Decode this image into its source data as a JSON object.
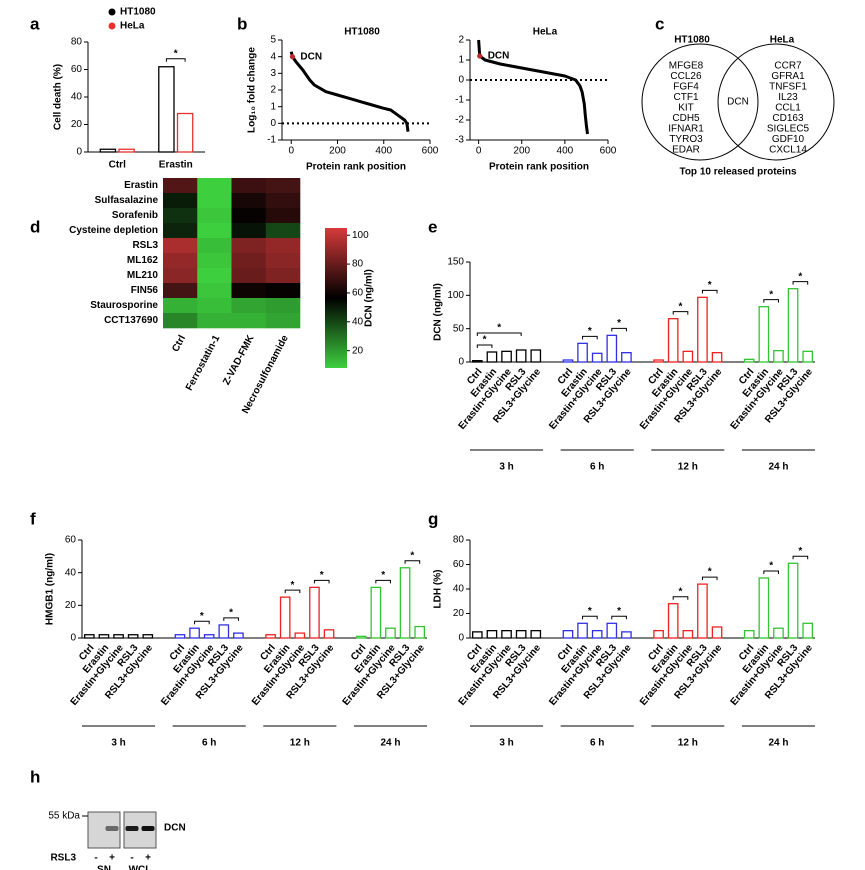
{
  "chart_data": [
    {
      "type": "bar",
      "panel": "a",
      "ylabel": "Cell death (%)",
      "categories": [
        "Ctrl",
        "Erastin"
      ],
      "series": [
        {
          "name": "HT1080",
          "color": "#000000",
          "values": [
            2,
            62
          ]
        },
        {
          "name": "HeLa",
          "color": "#e8312f",
          "values": [
            2,
            28
          ]
        }
      ],
      "ylim": [
        0,
        80
      ],
      "yticks": [
        0,
        20,
        40,
        60,
        80
      ],
      "significance": [
        {
          "category": 1,
          "between": [
            0,
            1
          ],
          "label": "*"
        }
      ]
    },
    {
      "type": "scatter",
      "panel": "b",
      "title": "HT1080",
      "ylabel": "Log₁₀ fold change",
      "xlabel": "Protein rank position",
      "x": [
        0,
        5,
        20,
        50,
        80,
        100,
        150,
        200,
        250,
        300,
        350,
        400,
        430,
        450,
        470,
        490,
        500,
        505
      ],
      "y": [
        4.3,
        4.0,
        3.7,
        3.2,
        2.6,
        2.3,
        1.9,
        1.7,
        1.5,
        1.3,
        1.1,
        0.9,
        0.8,
        0.6,
        0.4,
        0.2,
        0,
        -0.5
      ],
      "color": "#000000",
      "highlight_point": 1,
      "highlight_color": "#c0282d",
      "annotation": "DCN",
      "reference_line": 0,
      "xlim": [
        -40,
        600
      ],
      "xticks": [
        0,
        200,
        400,
        600
      ],
      "ylim": [
        -1,
        5
      ],
      "yticks": [
        -1,
        0,
        1,
        2,
        3,
        4,
        5
      ]
    },
    {
      "type": "scatter",
      "title": "HeLa",
      "xlabel": "Protein rank position",
      "x": [
        0,
        5,
        30,
        100,
        200,
        300,
        400,
        450,
        470,
        480,
        490,
        495,
        500,
        505
      ],
      "y": [
        2.0,
        1.2,
        1.0,
        0.8,
        0.6,
        0.4,
        0.2,
        0.0,
        -0.3,
        -0.6,
        -1.2,
        -1.8,
        -2.3,
        -2.7
      ],
      "color": "#000000",
      "highlight_point": 1,
      "highlight_color": "#c0282d",
      "annotation": "DCN",
      "reference_line": 0,
      "xlim": [
        -40,
        600
      ],
      "xticks": [
        0,
        200,
        400,
        600
      ],
      "ylim": [
        -3,
        2
      ],
      "yticks": [
        -3,
        -2,
        -1,
        0,
        1,
        2
      ]
    },
    {
      "type": "venn",
      "panel": "c",
      "sets": [
        "HT1080",
        "HeLa"
      ],
      "left_items": [
        "MFGE8",
        "CCL26",
        "FGF4",
        "CTF1",
        "KIT",
        "CDH5",
        "IFNAR1",
        "TYRO3",
        "EDAR"
      ],
      "right_items": [
        "CCR7",
        "GFRA1",
        "TNFSF1",
        "IL23",
        "CCL1",
        "CD163",
        "SIGLEC5",
        "GDF10",
        "CXCL14"
      ],
      "shared": "DCN",
      "shared_color": "#d42a2a",
      "caption": "Top 10 released proteins"
    },
    {
      "type": "heatmap",
      "panel": "d",
      "rows": [
        "Erastin",
        "Sulfasalazine",
        "Sorafenib",
        "Cysteine depletion",
        "RSL3",
        "ML162",
        "ML210",
        "FIN56",
        "Staurosporine",
        "CCT137690"
      ],
      "columns": [
        "Ctrl",
        "Ferrostatin-1",
        "Z-VAD-FMK",
        "Necrosulfonamide"
      ],
      "values": [
        [
          75,
          5,
          70,
          72
        ],
        [
          50,
          8,
          62,
          68
        ],
        [
          45,
          10,
          58,
          65
        ],
        [
          48,
          8,
          52,
          40
        ],
        [
          95,
          12,
          85,
          90
        ],
        [
          90,
          10,
          82,
          88
        ],
        [
          88,
          8,
          80,
          85
        ],
        [
          72,
          10,
          60,
          58
        ],
        [
          15,
          12,
          18,
          20
        ],
        [
          25,
          15,
          15,
          18
        ]
      ],
      "colormap": [
        "#3ecf3e",
        "#000000",
        "#d63a3a"
      ],
      "zlim": [
        8,
        105
      ],
      "zticks": [
        20,
        40,
        60,
        80,
        100
      ],
      "zlabel": "DCN (ng/ml)"
    },
    {
      "type": "groupedbar",
      "panel": "e",
      "ylabel": "DCN (ng/ml)",
      "categories": [
        "Ctrl",
        "Erastin",
        "Erastin+Glycine",
        "RSL3",
        "RSL3+Glycine"
      ],
      "groups": [
        {
          "name": "3 h",
          "color": "#000000",
          "values": [
            2,
            15,
            16,
            18,
            18
          ]
        },
        {
          "name": "6 h",
          "color": "#2f2fe6",
          "values": [
            3,
            28,
            13,
            40,
            14
          ]
        },
        {
          "name": "12 h",
          "color": "#ee2222",
          "values": [
            3,
            65,
            16,
            97,
            14
          ]
        },
        {
          "name": "24 h",
          "color": "#33c433",
          "values": [
            4,
            83,
            17,
            110,
            16
          ]
        }
      ],
      "ylim": [
        0,
        150
      ],
      "yticks": [
        0,
        50,
        100,
        150
      ],
      "significance": [
        {
          "group": 0,
          "between": [
            0,
            1
          ],
          "label": "*"
        },
        {
          "group": 0,
          "between": [
            0,
            3
          ],
          "label": "*"
        },
        {
          "group": 1,
          "between": [
            1,
            2
          ],
          "label": "*"
        },
        {
          "group": 1,
          "between": [
            3,
            4
          ],
          "label": "*"
        },
        {
          "group": 2,
          "between": [
            1,
            2
          ],
          "label": "*"
        },
        {
          "group": 2,
          "between": [
            3,
            4
          ],
          "label": "*"
        },
        {
          "group": 3,
          "between": [
            1,
            2
          ],
          "label": "*"
        },
        {
          "group": 3,
          "between": [
            3,
            4
          ],
          "label": "*"
        }
      ]
    },
    {
      "type": "groupedbar",
      "panel": "f",
      "ylabel": "HMGB1 (ng/ml)",
      "categories": [
        "Ctrl",
        "Erastin",
        "Erastin+Glycine",
        "RSL3",
        "RSL3+Glycine"
      ],
      "groups": [
        {
          "name": "3 h",
          "color": "#000000",
          "values": [
            2,
            2,
            2,
            2,
            2
          ]
        },
        {
          "name": "6 h",
          "color": "#2f2fe6",
          "values": [
            2,
            6,
            2,
            8,
            3
          ]
        },
        {
          "name": "12 h",
          "color": "#ee2222",
          "values": [
            2,
            25,
            3,
            31,
            5
          ]
        },
        {
          "name": "24 h",
          "color": "#33c433",
          "values": [
            1,
            31,
            6,
            43,
            7
          ]
        }
      ],
      "ylim": [
        0,
        60
      ],
      "yticks": [
        0,
        20,
        40,
        60
      ],
      "significance": [
        {
          "group": 1,
          "between": [
            1,
            2
          ],
          "label": "*"
        },
        {
          "group": 1,
          "between": [
            3,
            4
          ],
          "label": "*"
        },
        {
          "group": 2,
          "between": [
            1,
            2
          ],
          "label": "*"
        },
        {
          "group": 2,
          "between": [
            3,
            4
          ],
          "label": "*"
        },
        {
          "group": 3,
          "between": [
            1,
            2
          ],
          "label": "*"
        },
        {
          "group": 3,
          "between": [
            3,
            4
          ],
          "label": "*"
        }
      ]
    },
    {
      "type": "groupedbar",
      "panel": "g",
      "ylabel": "LDH (%)",
      "categories": [
        "Ctrl",
        "Erastin",
        "Erastin+Glycine",
        "RSL3",
        "RSL3+Glycine"
      ],
      "groups": [
        {
          "name": "3 h",
          "color": "#000000",
          "values": [
            5,
            6,
            6,
            6,
            6
          ]
        },
        {
          "name": "6 h",
          "color": "#2f2fe6",
          "values": [
            6,
            12,
            6,
            12,
            5
          ]
        },
        {
          "name": "12 h",
          "color": "#ee2222",
          "values": [
            6,
            28,
            6,
            44,
            9
          ]
        },
        {
          "name": "24 h",
          "color": "#33c433",
          "values": [
            6,
            49,
            8,
            61,
            12
          ]
        }
      ],
      "ylim": [
        0,
        80
      ],
      "yticks": [
        0,
        20,
        40,
        60,
        80
      ],
      "significance": [
        {
          "group": 1,
          "between": [
            1,
            2
          ],
          "label": "*"
        },
        {
          "group": 1,
          "between": [
            3,
            4
          ],
          "label": "*"
        },
        {
          "group": 2,
          "between": [
            1,
            2
          ],
          "label": "*"
        },
        {
          "group": 2,
          "between": [
            3,
            4
          ],
          "label": "*"
        },
        {
          "group": 3,
          "between": [
            1,
            2
          ],
          "label": "*"
        },
        {
          "group": 3,
          "between": [
            3,
            4
          ],
          "label": "*"
        }
      ]
    },
    {
      "type": "blot",
      "panel": "h",
      "marker": "55 kDa",
      "protein": "DCN",
      "treatment": "RSL3",
      "lanes": [
        "-",
        "+"
      ],
      "blots": [
        {
          "name": "SN",
          "values": [
            0,
            0.55
          ]
        },
        {
          "name": "WCL",
          "values": [
            0.95,
            1
          ]
        }
      ]
    }
  ]
}
